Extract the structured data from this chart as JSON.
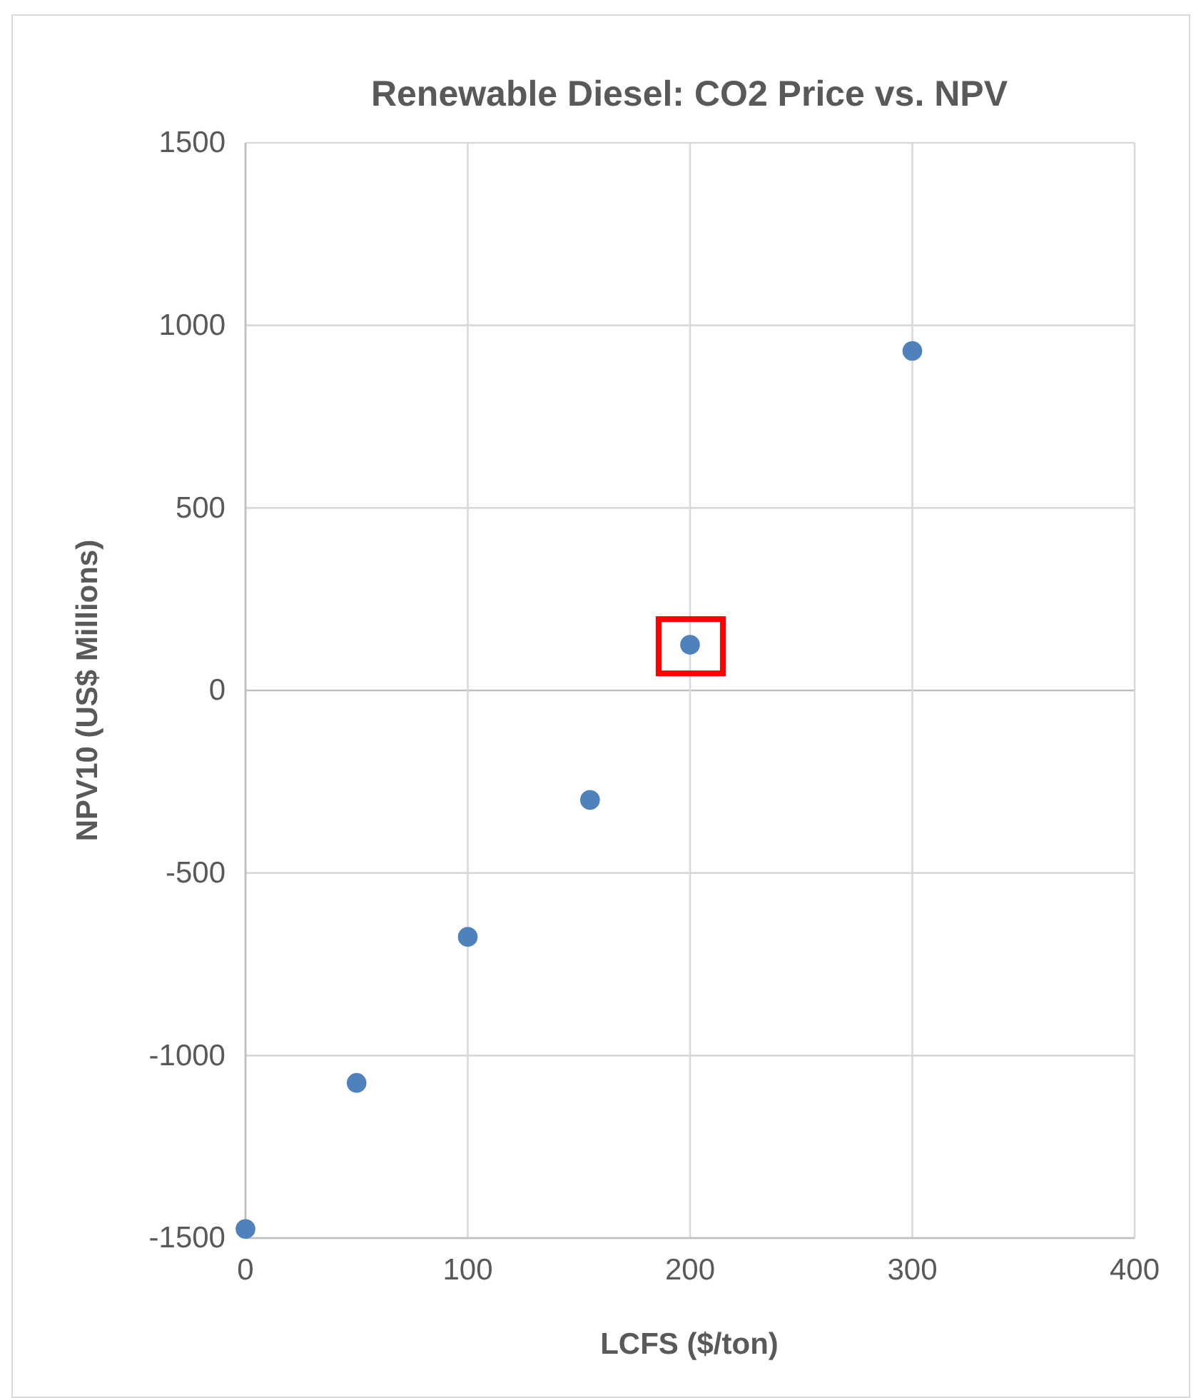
{
  "chart_data": {
    "type": "scatter",
    "title": "Renewable Diesel: CO2 Price vs. NPV",
    "xlabel": "LCFS ($/ton)",
    "ylabel": "NPV10 (US$ Millions)",
    "x": [
      0,
      50,
      100,
      155,
      200,
      300
    ],
    "series": [
      {
        "color": "#4f81bd",
        "values": [
          -1475,
          -1075,
          -675,
          -300,
          125,
          930
        ]
      }
    ],
    "xlim": [
      0,
      400
    ],
    "xticks": [
      0,
      100,
      200,
      300,
      400
    ],
    "ylim": [
      -1500,
      1500
    ],
    "yticks": [
      -1500,
      -1000,
      -500,
      0,
      500,
      1000,
      1500
    ],
    "grid": true,
    "marker": "circle"
  }
}
